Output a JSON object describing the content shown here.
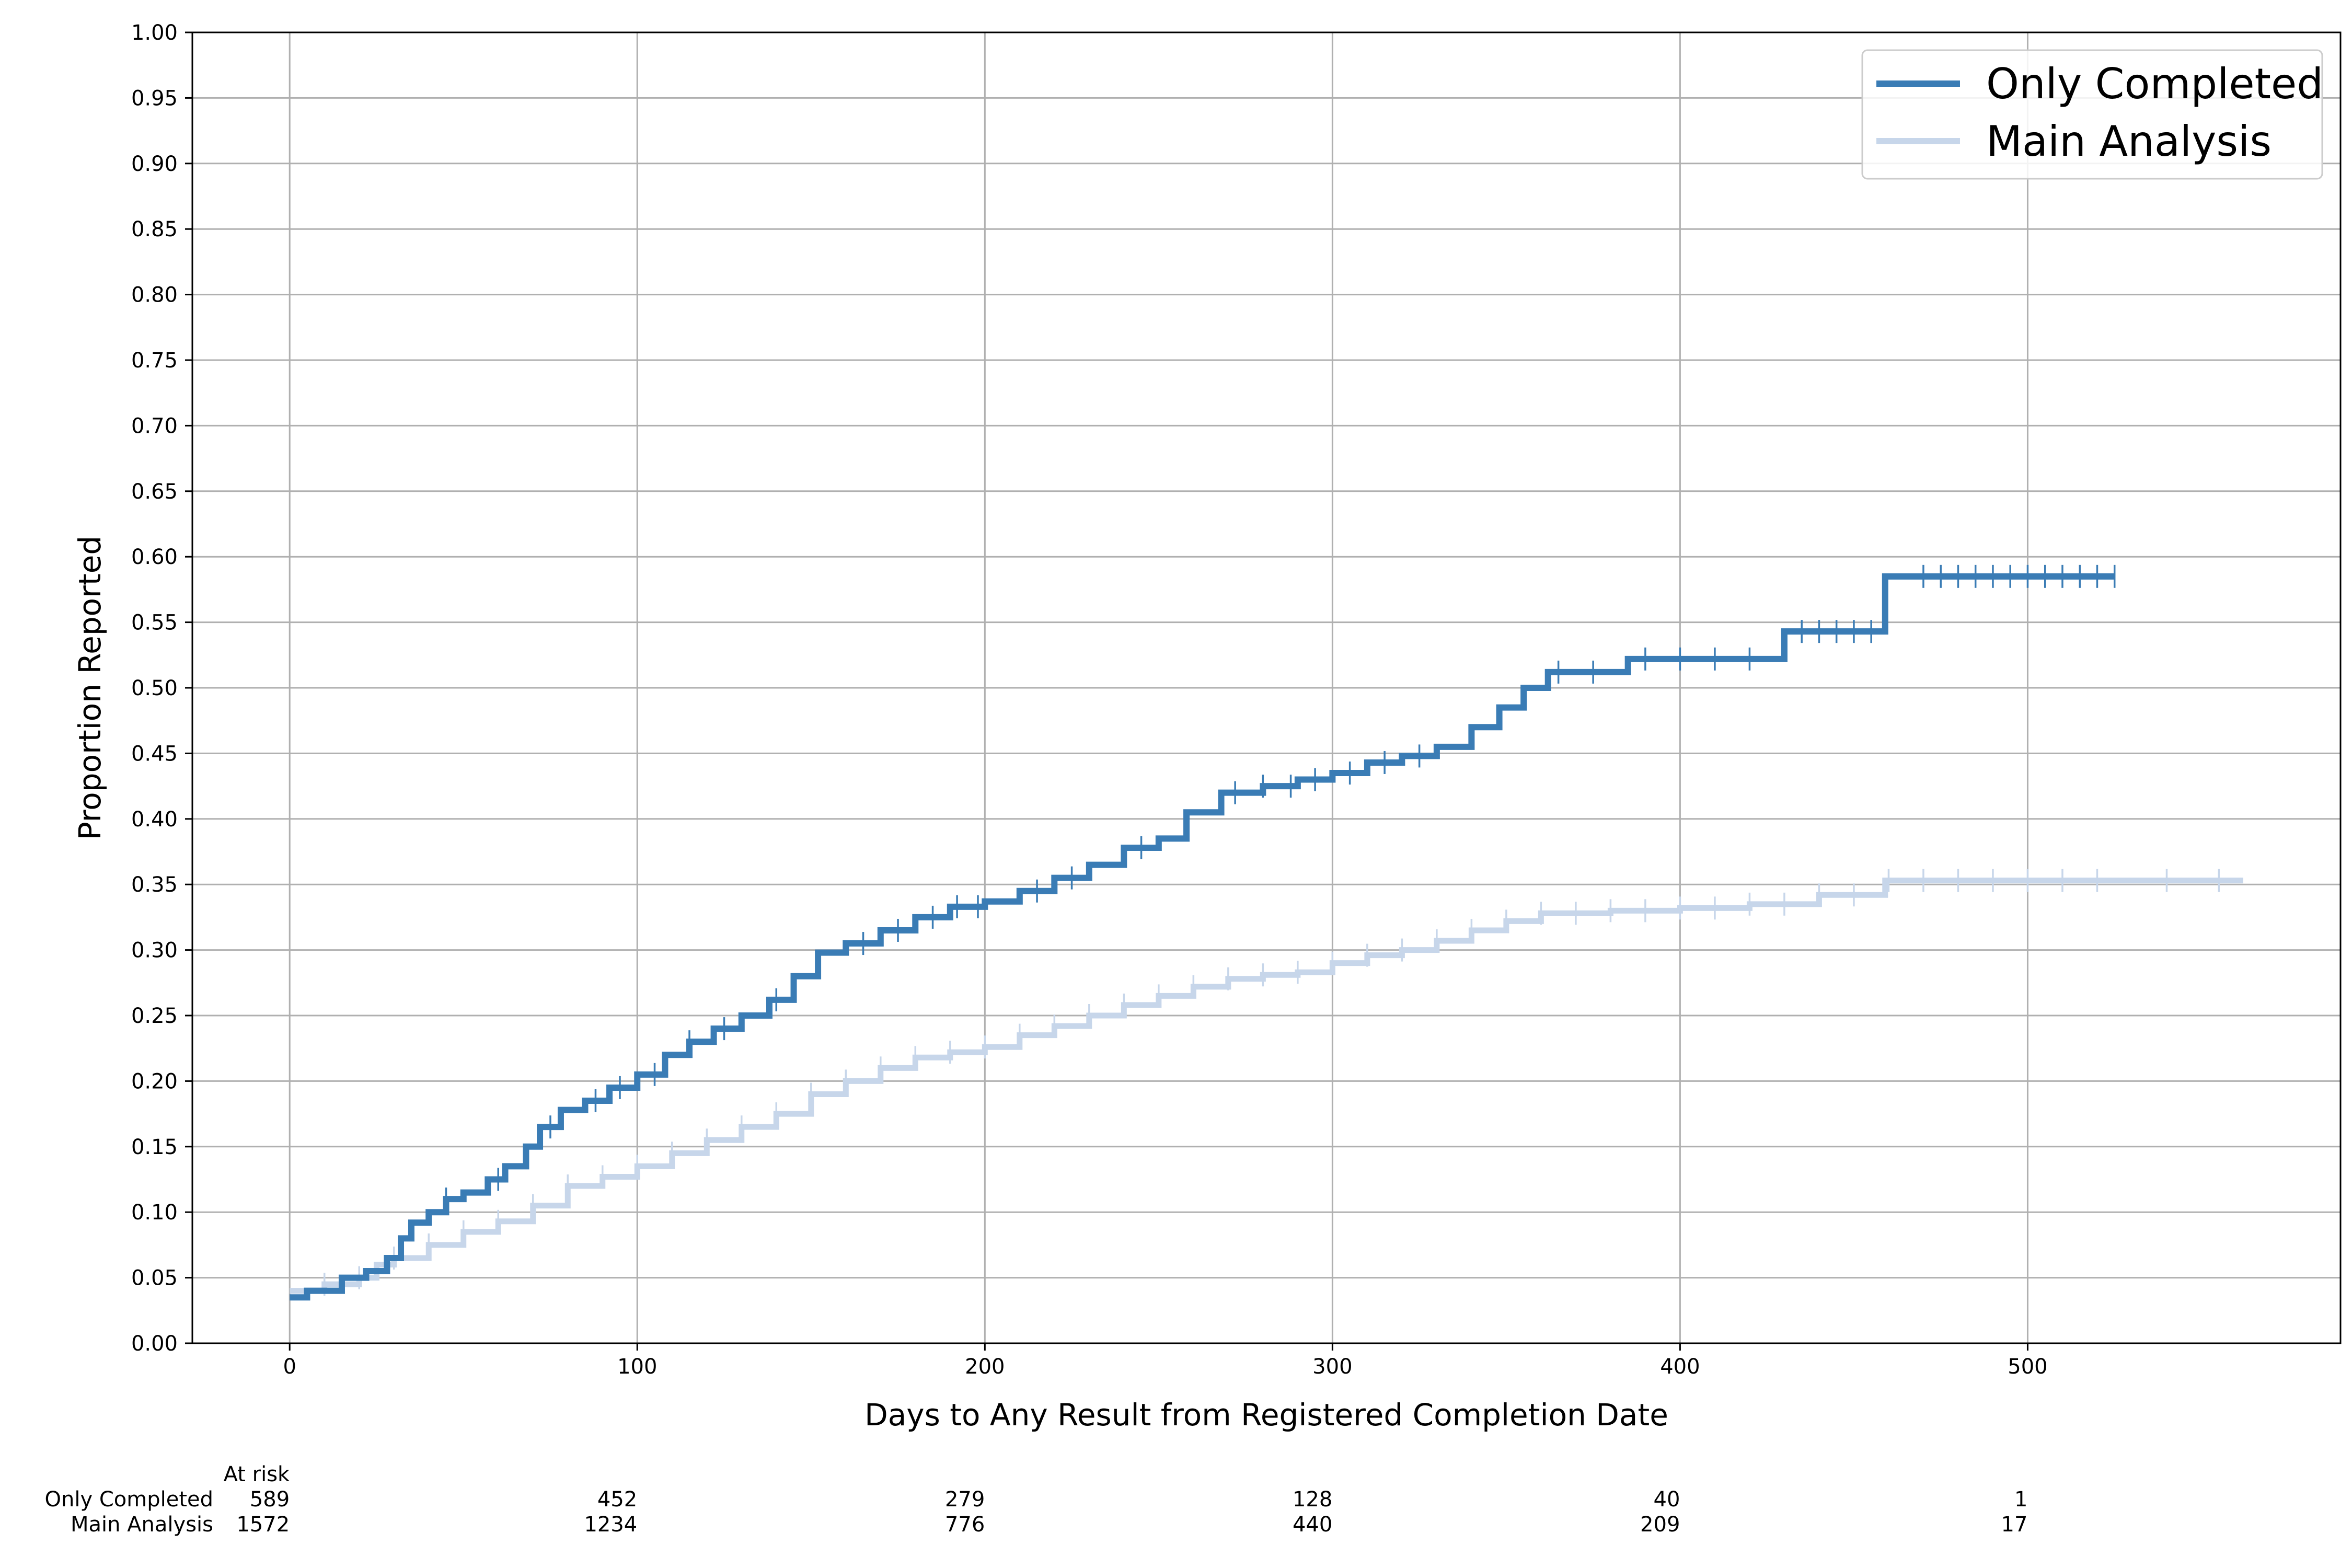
{
  "chart_data": {
    "type": "line",
    "subtype": "kaplan-meier-cumulative-incidence",
    "xlabel": "Days to Any Result from Registered Completion Date",
    "ylabel": "Proportion Reported",
    "xlim": [
      -28,
      590
    ],
    "ylim": [
      0,
      1
    ],
    "x_ticks": [
      0,
      100,
      200,
      300,
      400,
      500
    ],
    "y_ticks": [
      0.0,
      0.05,
      0.1,
      0.15,
      0.2,
      0.25,
      0.3,
      0.35,
      0.4,
      0.45,
      0.5,
      0.55,
      0.6,
      0.65,
      0.7,
      0.75,
      0.8,
      0.85,
      0.9,
      0.95,
      1.0
    ],
    "x_tick_labels": [
      "0",
      "100",
      "200",
      "300",
      "400",
      "500"
    ],
    "y_tick_labels": [
      "0.00",
      "0.05",
      "0.10",
      "0.15",
      "0.20",
      "0.25",
      "0.30",
      "0.35",
      "0.40",
      "0.45",
      "0.50",
      "0.55",
      "0.60",
      "0.65",
      "0.70",
      "0.75",
      "0.80",
      "0.85",
      "0.90",
      "0.95",
      "1.00"
    ],
    "grid": true,
    "legend_position": "top-right",
    "series": [
      {
        "name": "Only Completed",
        "color": "#3a7cb5",
        "x": [
          0,
          5,
          15,
          22,
          28,
          32,
          35,
          40,
          45,
          50,
          57,
          62,
          68,
          72,
          78,
          85,
          92,
          100,
          108,
          115,
          122,
          130,
          138,
          145,
          152,
          160,
          170,
          180,
          190,
          200,
          210,
          220,
          230,
          240,
          250,
          258,
          268,
          280,
          290,
          300,
          310,
          320,
          330,
          340,
          348,
          355,
          362,
          385,
          430,
          459,
          525
        ],
        "y": [
          0.035,
          0.04,
          0.05,
          0.055,
          0.065,
          0.08,
          0.092,
          0.1,
          0.11,
          0.115,
          0.125,
          0.135,
          0.15,
          0.165,
          0.178,
          0.185,
          0.195,
          0.205,
          0.22,
          0.23,
          0.24,
          0.25,
          0.262,
          0.28,
          0.298,
          0.305,
          0.315,
          0.325,
          0.333,
          0.337,
          0.345,
          0.355,
          0.365,
          0.378,
          0.385,
          0.405,
          0.42,
          0.425,
          0.43,
          0.435,
          0.443,
          0.448,
          0.455,
          0.47,
          0.485,
          0.5,
          0.512,
          0.522,
          0.543,
          0.585,
          0.585
        ],
        "censor_x": [
          45,
          60,
          75,
          88,
          95,
          105,
          115,
          125,
          140,
          165,
          175,
          185,
          192,
          198,
          215,
          225,
          245,
          272,
          280,
          288,
          295,
          305,
          315,
          325,
          365,
          375,
          390,
          400,
          410,
          420,
          435,
          440,
          445,
          450,
          455,
          470,
          475,
          480,
          485,
          490,
          495,
          500,
          505,
          510,
          515,
          520,
          525
        ]
      },
      {
        "name": "Main Analysis",
        "color": "#c7d6ea",
        "x": [
          0,
          10,
          20,
          25,
          30,
          40,
          50,
          60,
          70,
          80,
          90,
          100,
          110,
          120,
          130,
          140,
          150,
          160,
          170,
          180,
          190,
          200,
          210,
          220,
          230,
          240,
          250,
          260,
          270,
          280,
          290,
          300,
          310,
          320,
          330,
          340,
          350,
          360,
          380,
          400,
          420,
          440,
          459,
          562
        ],
        "y": [
          0.04,
          0.045,
          0.05,
          0.06,
          0.065,
          0.075,
          0.085,
          0.093,
          0.105,
          0.12,
          0.127,
          0.135,
          0.145,
          0.155,
          0.165,
          0.175,
          0.19,
          0.2,
          0.21,
          0.218,
          0.222,
          0.226,
          0.235,
          0.242,
          0.25,
          0.258,
          0.265,
          0.272,
          0.278,
          0.281,
          0.283,
          0.29,
          0.296,
          0.3,
          0.307,
          0.315,
          0.322,
          0.328,
          0.33,
          0.332,
          0.335,
          0.342,
          0.353,
          0.353
        ],
        "censor_x": [
          10,
          20,
          30,
          40,
          50,
          60,
          70,
          80,
          90,
          100,
          110,
          120,
          130,
          140,
          150,
          160,
          170,
          180,
          190,
          200,
          210,
          220,
          230,
          240,
          250,
          260,
          270,
          280,
          290,
          300,
          310,
          320,
          330,
          340,
          350,
          360,
          370,
          380,
          390,
          400,
          410,
          420,
          430,
          440,
          450,
          460,
          470,
          480,
          490,
          500,
          510,
          520,
          540,
          555
        ]
      }
    ],
    "at_risk": {
      "title": "At risk",
      "x": [
        0,
        100,
        200,
        300,
        400,
        500
      ],
      "rows": [
        {
          "label": "Only Completed",
          "values": [
            "589",
            "452",
            "279",
            "128",
            "40",
            "1"
          ]
        },
        {
          "label": "Main Analysis",
          "values": [
            "1572",
            "1234",
            "776",
            "440",
            "209",
            "17"
          ]
        }
      ]
    }
  }
}
